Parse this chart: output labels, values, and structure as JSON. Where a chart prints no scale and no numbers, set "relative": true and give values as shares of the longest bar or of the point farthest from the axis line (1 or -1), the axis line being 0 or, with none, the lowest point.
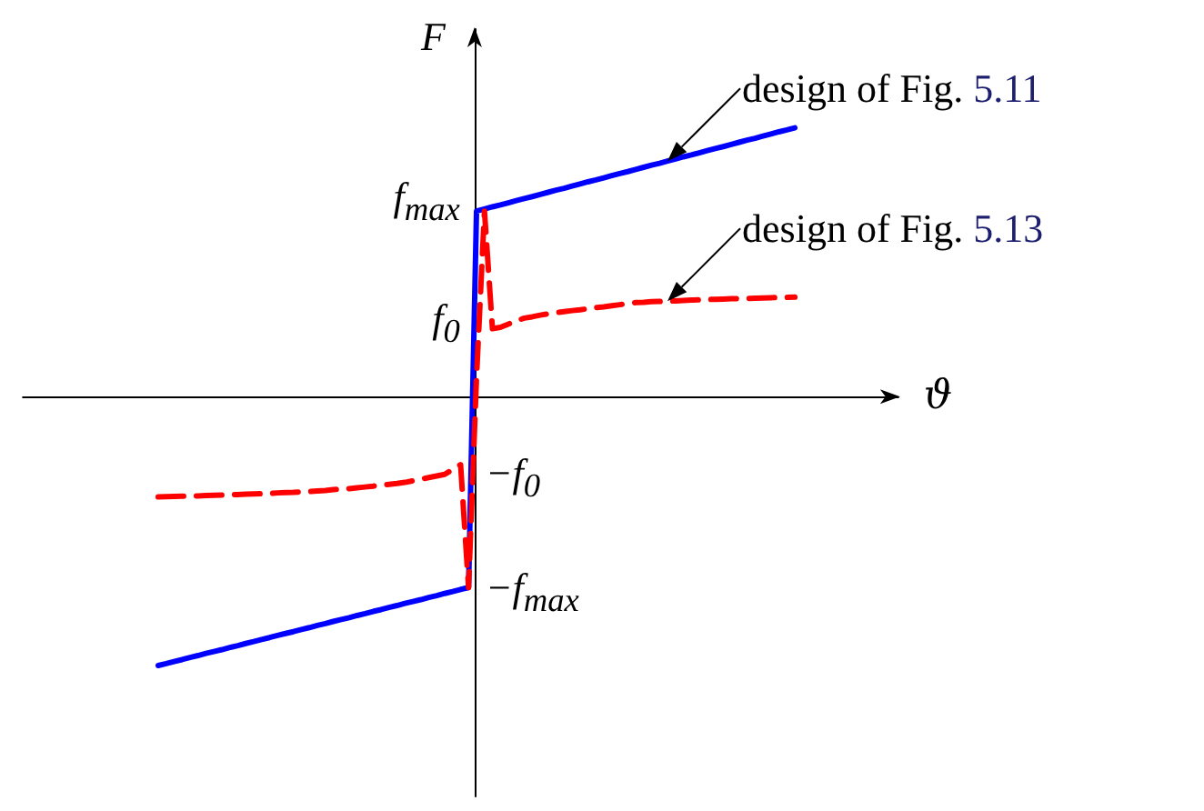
{
  "chart_data": {
    "type": "line",
    "relative": true,
    "xlabel": "ϑ",
    "ylabel": "F",
    "marker": "none",
    "line_style": "solid",
    "categories": [
      null,
      null,
      null,
      null,
      null,
      null,
      null,
      null,
      null,
      null,
      null,
      null,
      null,
      null,
      null,
      null,
      null,
      null,
      null,
      null,
      null,
      null,
      null,
      null,
      null,
      null,
      null,
      null,
      null,
      null,
      null,
      null,
      null,
      null,
      null,
      null,
      null,
      null,
      null,
      null,
      null,
      null,
      null,
      null,
      null,
      null,
      null,
      null,
      null,
      null,
      null,
      null,
      null,
      null,
      null,
      null,
      null,
      null,
      null,
      null,
      null,
      null,
      null,
      null,
      null,
      null,
      null,
      null,
      null,
      null,
      null,
      null,
      null,
      null,
      null,
      null,
      null,
      null,
      null,
      null,
      null,
      null,
      null,
      null,
      null,
      null,
      null,
      null,
      null,
      null,
      null,
      null,
      null,
      null,
      null,
      null,
      null,
      null,
      null,
      null,
      null,
      null,
      null,
      null,
      null,
      null,
      null,
      null,
      null,
      null,
      null
    ],
    "series": [
      {
        "name": "design of Fig. 5.11",
        "color": "#0000ff",
        "values": [
          null,
          null,
          null,
          null,
          null,
          null,
          null,
          null,
          null,
          null,
          null,
          null,
          null,
          null,
          null,
          null,
          null,
          -1,
          -0.993,
          -0.985,
          -0.978,
          -0.97,
          -0.963,
          -0.955,
          -0.948,
          -0.941,
          -0.933,
          -0.926,
          -0.918,
          -0.911,
          -0.903,
          -0.896,
          -0.888,
          -0.881,
          -0.874,
          -0.866,
          -0.859,
          -0.851,
          -0.844,
          -0.836,
          -0.829,
          -0.822,
          -0.814,
          -0.807,
          -0.799,
          -0.792,
          -0.784,
          -0.777,
          -0.769,
          -0.762,
          -0.755,
          -0.747,
          -0.74,
          -0.732,
          -0.725,
          -0.717,
          -0.71,
          0.69,
          0.698,
          0.706,
          0.713,
          0.721,
          0.729,
          0.737,
          0.744,
          0.752,
          0.76,
          0.768,
          0.775,
          0.783,
          0.791,
          0.799,
          0.806,
          0.814,
          0.822,
          0.83,
          0.837,
          0.845,
          0.853,
          0.861,
          0.868,
          0.876,
          0.884,
          0.892,
          0.899,
          0.907,
          0.915,
          0.923,
          0.93,
          0.938,
          0.946,
          0.954,
          0.961,
          0.969,
          0.977,
          0.985,
          0.992,
          1,
          null,
          null,
          null,
          null,
          null,
          null,
          null,
          null,
          null,
          null,
          null,
          null,
          null
        ]
      },
      {
        "name": "design of Fig. 5.13",
        "color": "#ff0000",
        "line_style": "dashed",
        "values": [
          null,
          null,
          null,
          null,
          null,
          null,
          null,
          null,
          null,
          null,
          null,
          null,
          null,
          null,
          null,
          null,
          null,
          -0.373,
          -0.372,
          -0.371,
          -0.37,
          -0.37,
          -0.369,
          -0.368,
          -0.367,
          -0.366,
          -0.365,
          -0.364,
          -0.363,
          -0.362,
          -0.361,
          -0.36,
          -0.358,
          -0.357,
          -0.356,
          -0.354,
          -0.353,
          -0.351,
          -0.349,
          -0.346,
          -0.344,
          -0.342,
          -0.339,
          -0.336,
          -0.333,
          -0.329,
          -0.326,
          -0.323,
          -0.319,
          -0.313,
          -0.307,
          -0.301,
          -0.295,
          -0.289,
          -0.271,
          -0.253,
          -0.71,
          0.07,
          0.69,
          0.253,
          0.258,
          0.27,
          0.282,
          0.292,
          0.297,
          0.303,
          0.308,
          0.312,
          0.316,
          0.32,
          0.323,
          0.327,
          0.331,
          0.334,
          0.338,
          0.342,
          0.346,
          0.35,
          0.351,
          0.353,
          0.354,
          0.355,
          0.356,
          0.358,
          0.359,
          0.36,
          0.361,
          0.362,
          0.363,
          0.364,
          0.365,
          0.365,
          0.366,
          0.367,
          0.368,
          0.369,
          0.369,
          0.37,
          null,
          null,
          null,
          null,
          null,
          null,
          null,
          null,
          null,
          null,
          null,
          null,
          null
        ]
      }
    ],
    "annotations": [
      "f$_{max}$",
      "f$_{0}$",
      "−f$_{0}$",
      "−f$_{max}$"
    ]
  }
}
